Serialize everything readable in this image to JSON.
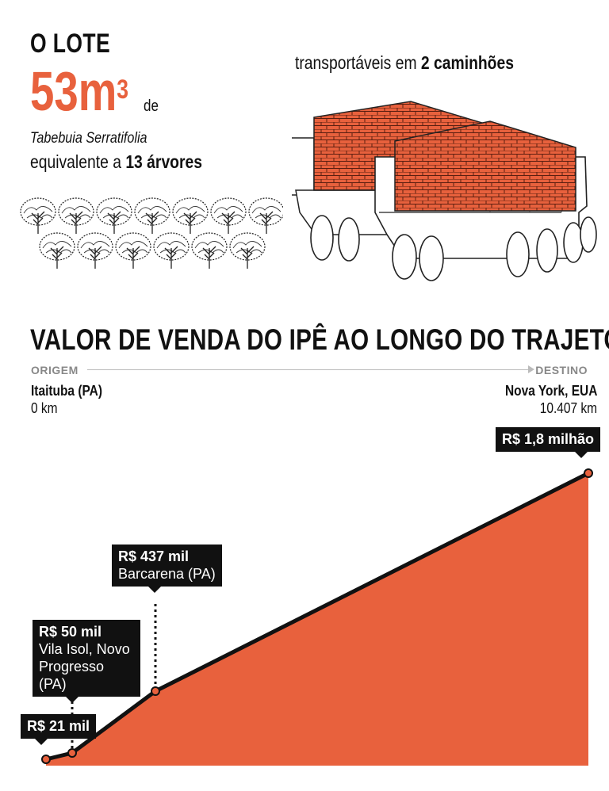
{
  "header": {
    "lote_title": "O LOTE",
    "volume_number": "53m",
    "volume_exponent": "3",
    "volume_suffix": "de",
    "species": "Tabebuia Serratifolia",
    "equiv_prefix": "equivalente a ",
    "equiv_bold": "13 árvores",
    "trucks_prefix": "transportáveis em ",
    "trucks_bold": "2 caminhões"
  },
  "colors": {
    "accent": "#e8613d",
    "ink": "#111111",
    "route_line": "#bbbbbb"
  },
  "icons": {
    "trees": "tree-icon",
    "trucks": "log-truck-icon"
  },
  "route": {
    "origin_label": "ORIGEM",
    "origin_place": "Itaituba (PA)",
    "origin_distance": "0 km",
    "destination_label": "DESTINO",
    "destination_place": "Nova York, EUA",
    "destination_distance": "10.407 km"
  },
  "chart_data": {
    "type": "area",
    "title": "VALOR DE VENDA DO IPÊ AO LONGO DO TRAJETO",
    "x_unit": "km",
    "x_range": [
      0,
      10407
    ],
    "points": [
      {
        "x": 0,
        "value": 21000,
        "label": "R$ 21 mil",
        "place": ""
      },
      {
        "x": 500,
        "value": 50000,
        "label": "R$ 50 mil",
        "place": "Vila Isol, Novo Progresso (PA)"
      },
      {
        "x": 2000,
        "value": 437000,
        "label": "R$ 437 mil",
        "place": "Barcarena (PA)"
      },
      {
        "x": 10407,
        "value": 1800000,
        "label": "R$ 1,8 milhão",
        "place": ""
      }
    ],
    "grid": false,
    "legend": "none"
  }
}
